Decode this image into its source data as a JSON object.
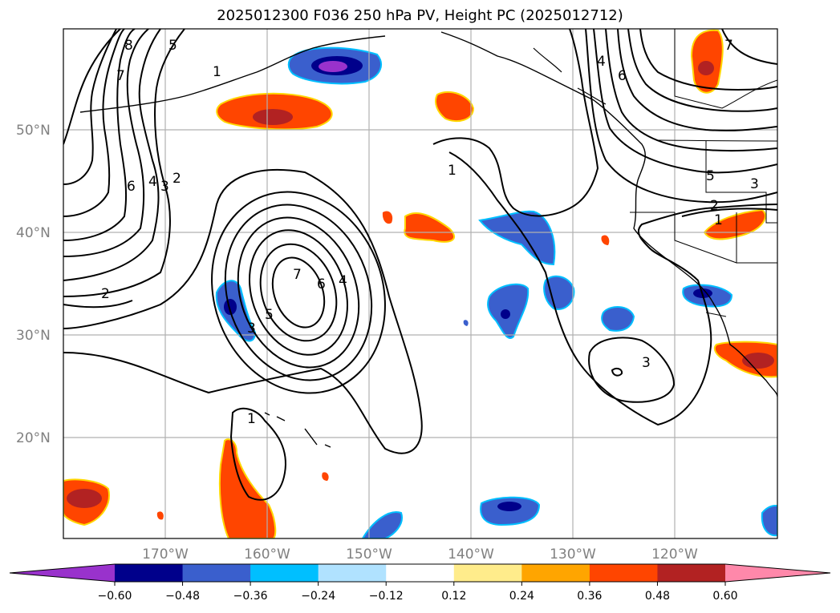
{
  "title": "2025012300 F036 250 hPa PV, Height PC (2025012712)",
  "lat_labels": [
    "50°N",
    "40°N",
    "30°N",
    "20°N"
  ],
  "lon_labels": [
    "170°W",
    "160°W",
    "150°W",
    "140°W",
    "130°W",
    "120°W"
  ],
  "colorbar": {
    "ticks": [
      "−0.60",
      "−0.48",
      "−0.36",
      "−0.24",
      "−0.12",
      "0.12",
      "0.24",
      "0.36",
      "0.48",
      "0.60"
    ],
    "colors": [
      "#9932cc",
      "#00008b",
      "#3a5fcd",
      "#00bfff",
      "#b0e2ff",
      "#ffffff",
      "#ffec8b",
      "#ffa500",
      "#ff4500",
      "#b22222",
      "#ff88aa"
    ]
  },
  "contour_labels": [
    "8",
    "5",
    "1",
    "7",
    "6",
    "4",
    "3",
    "2",
    "7",
    "6",
    "4",
    "5",
    "3",
    "2",
    "1",
    "1",
    "4",
    "6",
    "3",
    "5",
    "3",
    "2",
    "1",
    "7"
  ]
}
